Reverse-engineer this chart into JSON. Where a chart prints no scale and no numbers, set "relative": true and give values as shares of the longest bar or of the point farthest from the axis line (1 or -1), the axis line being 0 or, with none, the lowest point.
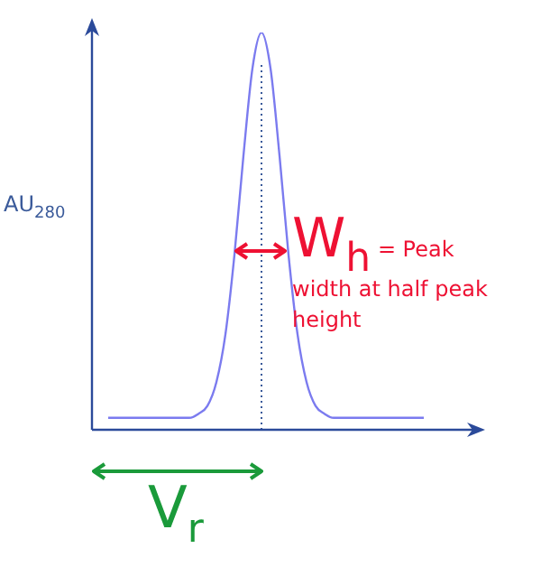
{
  "chart_data": {
    "type": "line",
    "relative": true,
    "ylabel": "AU$_{280}$",
    "categories": [
      null,
      null,
      null,
      null,
      null,
      null,
      null,
      null,
      null,
      null,
      null,
      null,
      null,
      null,
      null,
      null,
      null,
      null,
      null,
      null,
      null,
      null,
      null,
      null,
      null,
      null,
      null,
      null,
      null,
      null,
      null,
      null,
      null,
      null,
      null,
      null
    ],
    "series": [
      {
        "color": "#7b7bef",
        "values": [
          0.03,
          0.03,
          0.03,
          0.03,
          0.03,
          0.03,
          0.03,
          0.03,
          0.03,
          0.03,
          0.04,
          0.06,
          0.12,
          0.24,
          0.44,
          0.69,
          0.91,
          1,
          0.91,
          0.69,
          0.44,
          0.24,
          0.12,
          0.06,
          0.04,
          0.03,
          0.03,
          0.03,
          0.03,
          0.03,
          0.03,
          0.03,
          0.03,
          0.03,
          0.03,
          0.03
        ]
      }
    ],
    "annotations": [
      "W$_{h}$ = Peak width at half peak height",
      "V$_{r}$"
    ]
  }
}
